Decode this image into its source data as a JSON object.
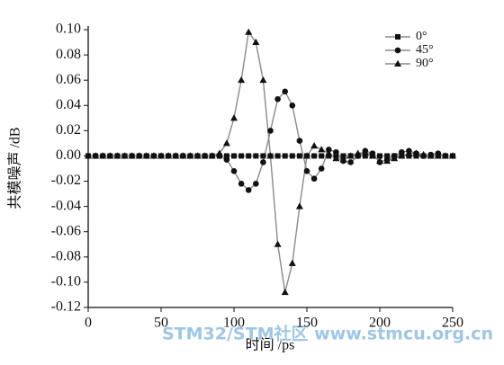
{
  "chart_data": {
    "type": "line",
    "xlabel": "时间 /ps",
    "ylabel": "共模噪声 /dB",
    "watermark": "STM32/STM社区 www.stmcu.org.cn",
    "x": [
      0,
      5,
      10,
      15,
      20,
      25,
      30,
      35,
      40,
      45,
      50,
      55,
      60,
      65,
      70,
      75,
      80,
      85,
      90,
      95,
      100,
      105,
      110,
      115,
      120,
      125,
      130,
      135,
      140,
      145,
      150,
      155,
      160,
      165,
      170,
      175,
      180,
      185,
      190,
      195,
      200,
      205,
      210,
      215,
      220,
      225,
      230,
      235,
      240,
      245,
      250
    ],
    "series": [
      {
        "name": "0°",
        "color": "#111111",
        "line_color": "#8a8a8a",
        "marker": "square",
        "values": [
          0,
          0,
          0,
          0,
          0,
          0,
          0,
          0,
          0,
          0,
          0,
          0,
          0,
          0,
          0,
          0,
          0,
          0,
          0,
          0,
          0,
          0,
          0,
          0,
          0,
          0,
          0,
          0,
          0,
          0,
          0,
          0,
          0,
          0,
          0,
          0,
          0,
          0,
          0,
          0,
          0,
          0,
          0,
          0,
          0,
          0,
          0,
          0,
          0,
          0,
          0
        ]
      },
      {
        "name": "45°",
        "color": "#111111",
        "line_color": "#8a8a8a",
        "marker": "circle",
        "values": [
          0,
          0,
          0,
          0,
          0,
          0,
          0,
          0,
          0,
          0,
          0,
          0,
          0,
          0,
          0,
          0,
          0,
          0,
          0,
          -0.003,
          -0.012,
          -0.022,
          -0.027,
          -0.022,
          -0.005,
          0.02,
          0.045,
          0.051,
          0.04,
          0.012,
          -0.012,
          -0.018,
          -0.01,
          0.005,
          0.003,
          -0.004,
          -0.005,
          0,
          0.004,
          0.002,
          -0.005,
          -0.003,
          0,
          0.003,
          0.004,
          0.002,
          0,
          0.001,
          0.002,
          0,
          0
        ]
      },
      {
        "name": "90°",
        "color": "#111111",
        "line_color": "#8a8a8a",
        "marker": "triangle",
        "values": [
          0,
          0,
          0,
          0,
          0,
          0,
          0,
          0,
          0,
          0,
          0,
          0,
          0,
          0,
          0,
          0,
          0,
          0,
          0.002,
          0.01,
          0.03,
          0.06,
          0.098,
          0.09,
          0.06,
          0,
          -0.07,
          -0.108,
          -0.085,
          -0.04,
          0,
          0.008,
          0.005,
          0.002,
          -0.002,
          -0.003,
          0,
          0.002,
          0.003,
          0,
          -0.004,
          -0.004,
          -0.002,
          0,
          0.002,
          0.002,
          0.001,
          0,
          0,
          0,
          0
        ]
      }
    ],
    "xlim": [
      0,
      250
    ],
    "xticks": [
      0,
      50,
      100,
      150,
      200,
      250
    ],
    "ylim": [
      -0.12,
      0.1
    ],
    "yticks": [
      {
        "value": -0.12,
        "label": "-0.12"
      },
      {
        "value": -0.1,
        "label": "-0.10"
      },
      -0.08,
      -0.06,
      -0.04,
      -0.02,
      {
        "value": 0,
        "label": "0.00"
      },
      0.02,
      0.04,
      0.06,
      0.08,
      {
        "value": 0.1,
        "label": "0.10"
      }
    ],
    "legend": "top-right"
  }
}
